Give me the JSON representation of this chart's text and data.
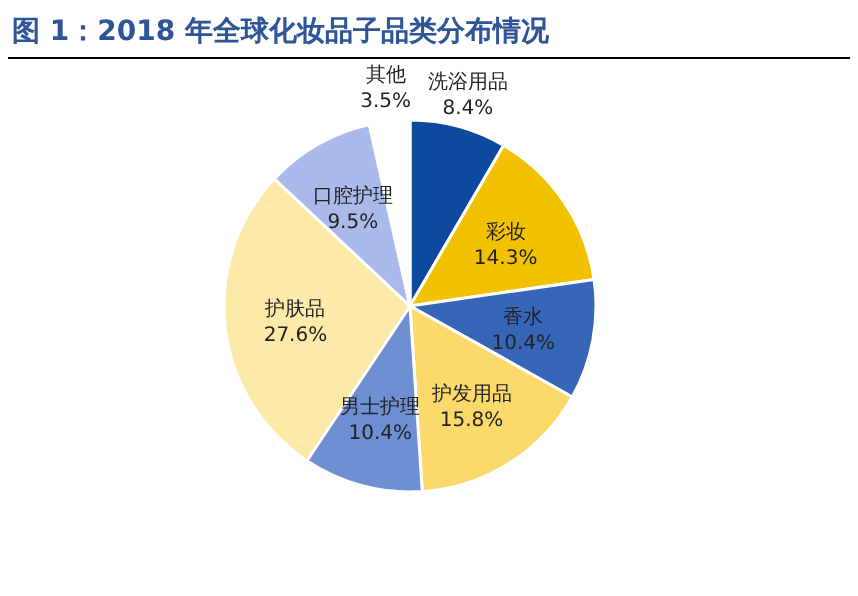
{
  "chart_data": {
    "type": "pie",
    "title": "图 1：2018 年全球化妆品子品类分布情况",
    "categories": [
      "洗浴用品",
      "彩妆",
      "香水",
      "护发用品",
      "男士护理",
      "护肤品",
      "口腔护理",
      "其他"
    ],
    "values": [
      8.4,
      14.3,
      10.4,
      15.8,
      10.4,
      27.6,
      9.5,
      3.5
    ],
    "value_labels": [
      "8.4%",
      "14.3%",
      "10.4%",
      "15.8%",
      "10.4%",
      "27.6%",
      "9.5%",
      "3.5%"
    ],
    "colors": [
      "#0d4a9e",
      "#f2c200",
      "#3566b8",
      "#fbd96a",
      "#6f8fd3",
      "#fde9a8",
      "#a9b9ea",
      "#ffffff"
    ],
    "legend": false
  }
}
